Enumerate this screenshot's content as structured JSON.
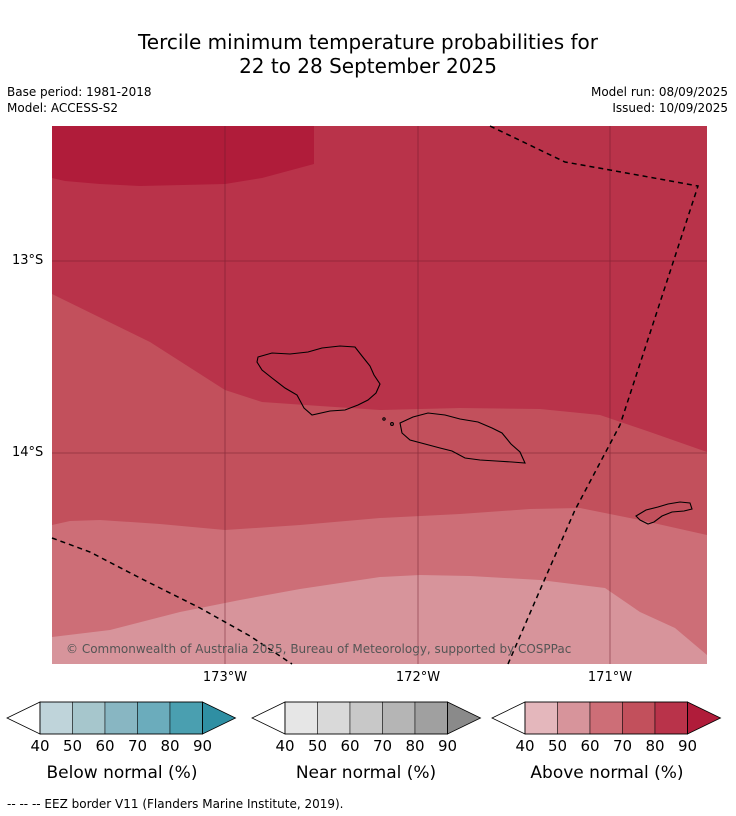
{
  "title_line1": "Tercile minimum temperature probabilities for",
  "title_line2": "22 to 28 September 2025",
  "base_period": "Base period: 1981-2018",
  "model": "Model: ACCESS-S2",
  "model_run": "Model run: 08/09/2025",
  "issued": "Issued: 10/09/2025",
  "map": {
    "lat_labels": [
      "13°S",
      "14°S"
    ],
    "lon_labels": [
      "173°W",
      "172°W",
      "171°W"
    ],
    "copyright": "© Commonwealth of Australia 2025, Bureau of Meteorology, supported by COSPPac"
  },
  "colorbars": [
    {
      "title": "Below normal (%)",
      "ticks": [
        "40",
        "50",
        "60",
        "70",
        "80",
        "90"
      ],
      "colors": [
        "#bfd4da",
        "#a6c6cc",
        "#88b6c2",
        "#6bacbc",
        "#4a9fb0",
        "#2f8fa3"
      ]
    },
    {
      "title": "Near normal (%)",
      "ticks": [
        "40",
        "50",
        "60",
        "70",
        "80",
        "90"
      ],
      "colors": [
        "#e6e6e6",
        "#d9d9d9",
        "#c8c8c8",
        "#b5b5b5",
        "#a0a0a0",
        "#8a8a8a"
      ]
    },
    {
      "title": "Above normal (%)",
      "ticks": [
        "40",
        "50",
        "60",
        "70",
        "80",
        "90"
      ],
      "colors": [
        "#e4b7bc",
        "#d7949b",
        "#cd6e77",
        "#c2505c",
        "#b9334a",
        "#b01c3a"
      ]
    }
  ],
  "footnote": "--  --  -- EEZ border V11 (Flanders Marine Institute, 2019)."
}
